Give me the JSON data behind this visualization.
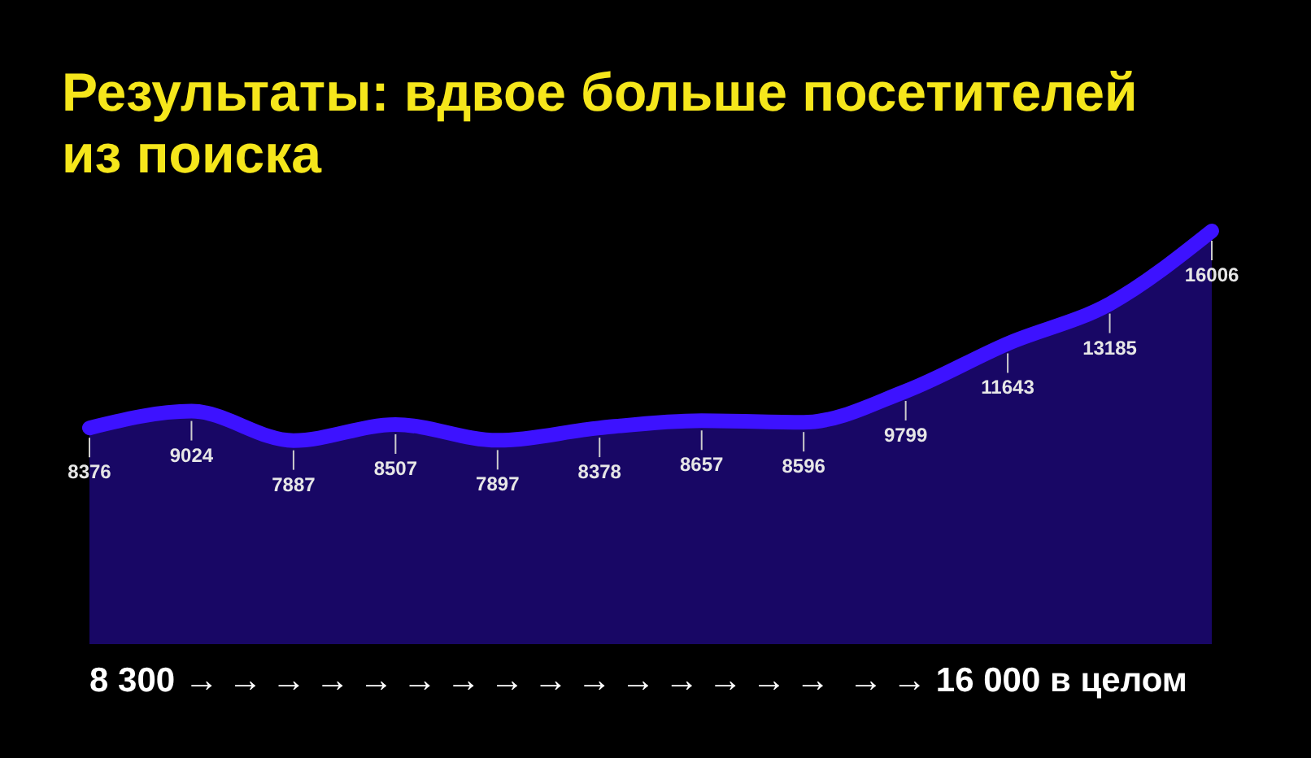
{
  "chart_data": {
    "type": "area",
    "title": "Результаты: вдвое больше посетителей из поиска",
    "categories": [
      null,
      null,
      null,
      null,
      null,
      null,
      null,
      null,
      null,
      null,
      null,
      null
    ],
    "series": [
      {
        "color": "#3d12ff",
        "values": [
          8376,
          9024,
          7887,
          8507,
          7897,
          8378,
          8657,
          8596,
          9799,
          11643,
          13185,
          16006
        ]
      }
    ],
    "data_labels": true,
    "annotations": [
      "8 300 → → → → → → → → → → → → → → →  → → 16 000 в целом"
    ]
  }
}
